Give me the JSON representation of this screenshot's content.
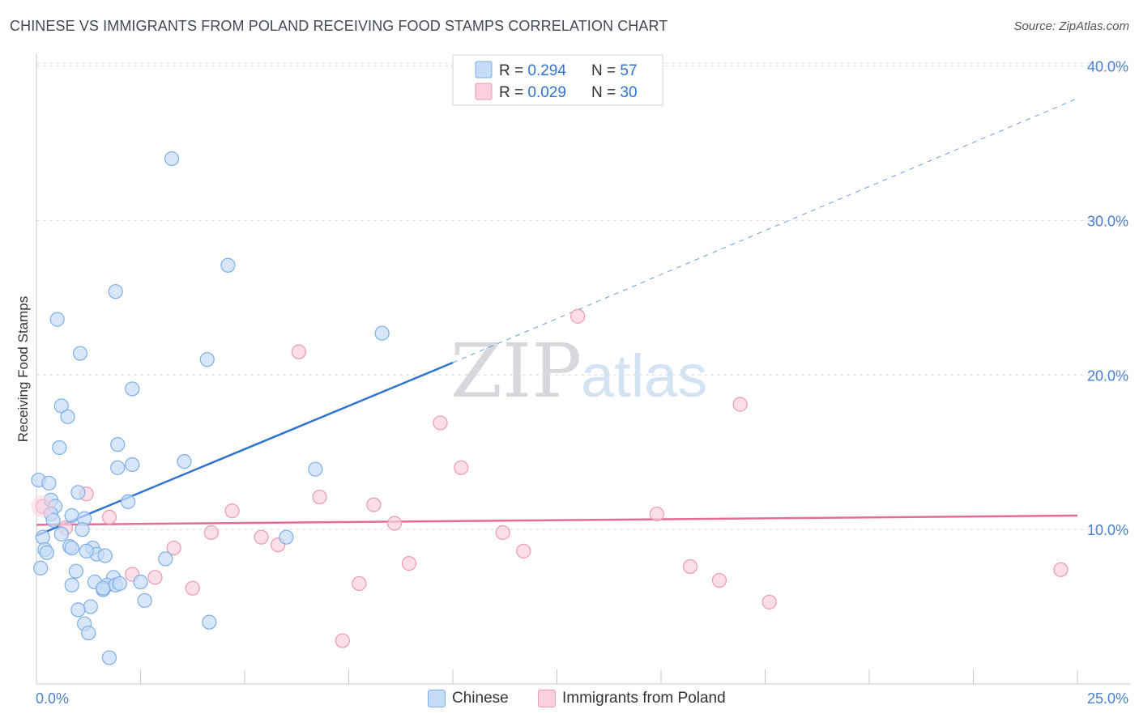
{
  "header": {
    "title": "CHINESE VS IMMIGRANTS FROM POLAND RECEIVING FOOD STAMPS CORRELATION CHART",
    "source": "Source: ZipAtlas.com"
  },
  "watermark": {
    "part1": "ZIP",
    "part2": "atlas"
  },
  "colors": {
    "chinese_fill": "#c6dbf7",
    "chinese_stroke": "#7eaee6",
    "chinese_line": "#2e74d0",
    "poland_fill": "#f9d0dc",
    "poland_stroke": "#eb9ab3",
    "poland_line": "#e46d96",
    "axis_text": "#4a7fd0",
    "grid": "#d9dde3"
  },
  "chart_data": {
    "type": "scatter",
    "title": "CHINESE VS IMMIGRANTS FROM POLAND RECEIVING FOOD STAMPS CORRELATION CHART",
    "xlabel": "",
    "ylabel": "Receiving Food Stamps",
    "xlim": [
      0,
      25
    ],
    "ylim": [
      0,
      40.5
    ],
    "x_tick_labels": [
      "0.0%",
      "25.0%"
    ],
    "y_ticks": [
      10,
      20,
      30,
      40
    ],
    "y_tick_labels": [
      "10.0%",
      "20.0%",
      "30.0%",
      "40.0%"
    ],
    "grid": true,
    "legend_position": "top-center",
    "stats": [
      {
        "label_r": "R = ",
        "r": "0.294",
        "label_n": "N = ",
        "n": "57"
      },
      {
        "label_r": "R = ",
        "r": "0.029",
        "label_n": "N = ",
        "n": "30"
      }
    ],
    "series": [
      {
        "name": "Chinese",
        "trend": {
          "x0": 0,
          "y0": 9.6,
          "x1": 10,
          "y1": 20.8,
          "x_ext": 25,
          "y_ext": 37.9
        },
        "points": [
          [
            3.25,
            34.0
          ],
          [
            4.6,
            27.1
          ],
          [
            1.9,
            25.4
          ],
          [
            0.5,
            23.6
          ],
          [
            8.3,
            22.7
          ],
          [
            1.05,
            21.4
          ],
          [
            4.1,
            21.0
          ],
          [
            2.3,
            19.1
          ],
          [
            0.6,
            18.0
          ],
          [
            0.75,
            17.3
          ],
          [
            0.55,
            15.3
          ],
          [
            1.95,
            15.5
          ],
          [
            3.55,
            14.4
          ],
          [
            2.3,
            14.2
          ],
          [
            1.95,
            14.0
          ],
          [
            6.7,
            13.9
          ],
          [
            0.05,
            13.2
          ],
          [
            0.3,
            13.0
          ],
          [
            1.0,
            12.4
          ],
          [
            0.35,
            11.9
          ],
          [
            2.2,
            11.8
          ],
          [
            0.45,
            11.5
          ],
          [
            0.35,
            11.0
          ],
          [
            0.85,
            10.9
          ],
          [
            0.4,
            10.6
          ],
          [
            1.15,
            10.7
          ],
          [
            1.1,
            10.0
          ],
          [
            0.6,
            9.7
          ],
          [
            0.15,
            9.5
          ],
          [
            6.0,
            9.5
          ],
          [
            0.8,
            8.9
          ],
          [
            0.85,
            8.8
          ],
          [
            1.35,
            8.8
          ],
          [
            0.2,
            8.7
          ],
          [
            0.25,
            8.5
          ],
          [
            1.45,
            8.4
          ],
          [
            1.65,
            8.3
          ],
          [
            3.1,
            8.1
          ],
          [
            0.1,
            7.5
          ],
          [
            0.95,
            7.3
          ],
          [
            1.85,
            6.9
          ],
          [
            1.4,
            6.6
          ],
          [
            0.85,
            6.4
          ],
          [
            1.7,
            6.4
          ],
          [
            1.9,
            6.4
          ],
          [
            2.5,
            6.6
          ],
          [
            1.6,
            6.1
          ],
          [
            2.6,
            5.4
          ],
          [
            1.3,
            5.0
          ],
          [
            1.0,
            4.8
          ],
          [
            4.15,
            4.0
          ],
          [
            1.15,
            3.9
          ],
          [
            1.25,
            3.3
          ],
          [
            1.75,
            1.7
          ],
          [
            1.6,
            6.2
          ],
          [
            2.0,
            6.5
          ],
          [
            1.2,
            8.6
          ]
        ]
      },
      {
        "name": "Immigrants from Poland",
        "trend": {
          "x0": 0,
          "y0": 10.3,
          "x1": 25,
          "y1": 10.9
        },
        "points": [
          [
            0.15,
            11.5
          ],
          [
            13.0,
            23.8
          ],
          [
            6.3,
            21.5
          ],
          [
            16.9,
            18.1
          ],
          [
            9.7,
            16.9
          ],
          [
            10.2,
            14.0
          ],
          [
            1.2,
            12.3
          ],
          [
            6.8,
            12.1
          ],
          [
            8.1,
            11.6
          ],
          [
            4.7,
            11.2
          ],
          [
            1.75,
            10.8
          ],
          [
            14.9,
            11.0
          ],
          [
            8.6,
            10.4
          ],
          [
            0.7,
            10.1
          ],
          [
            4.2,
            9.8
          ],
          [
            11.2,
            9.8
          ],
          [
            5.4,
            9.5
          ],
          [
            5.8,
            9.0
          ],
          [
            3.3,
            8.8
          ],
          [
            11.7,
            8.6
          ],
          [
            8.95,
            7.8
          ],
          [
            15.7,
            7.6
          ],
          [
            2.3,
            7.1
          ],
          [
            2.85,
            6.9
          ],
          [
            24.6,
            7.4
          ],
          [
            16.4,
            6.7
          ],
          [
            7.75,
            6.5
          ],
          [
            3.75,
            6.2
          ],
          [
            17.6,
            5.3
          ],
          [
            7.35,
            2.8
          ]
        ]
      }
    ]
  }
}
